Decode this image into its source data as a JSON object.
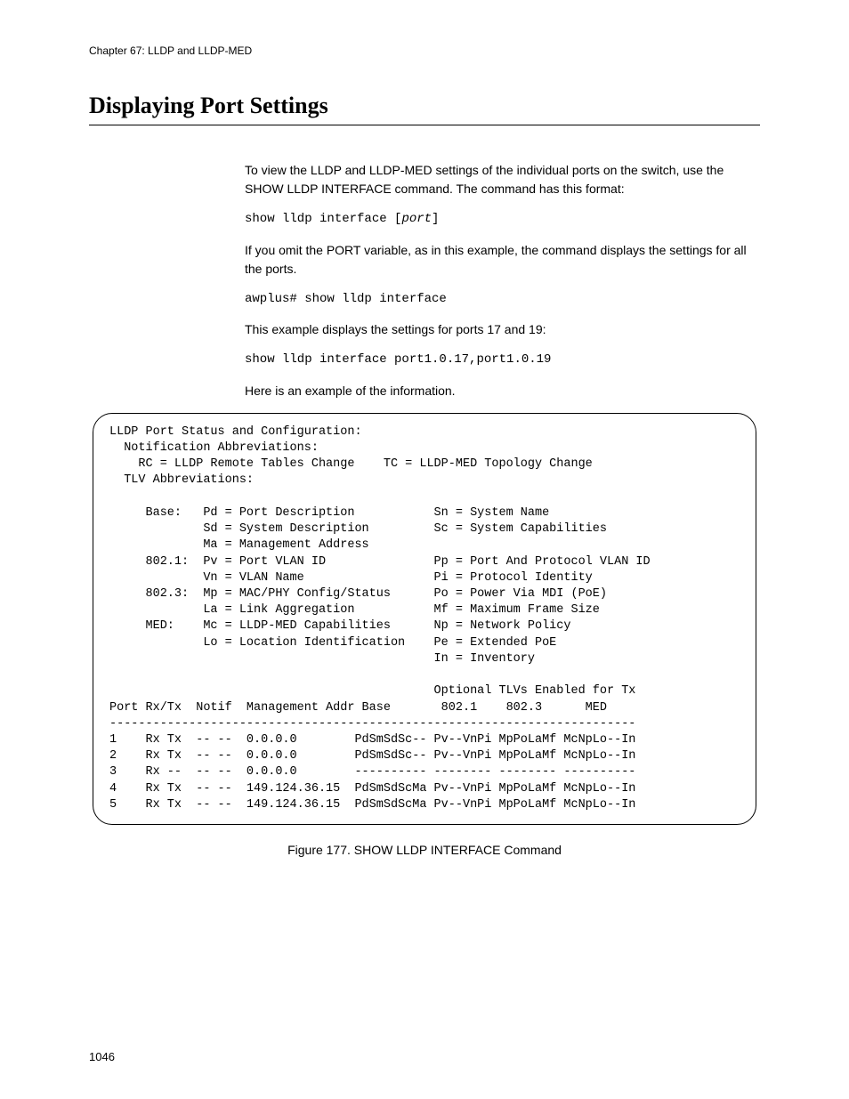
{
  "chapter_header": "Chapter 67: LLDP and LLDP-MED",
  "section_title": "Displaying Port Settings",
  "para1": "To view the LLDP and LLDP-MED settings of the individual ports on the switch, use the SHOW LLDP INTERFACE command. The command has this format:",
  "cmd1_prefix": "show lldp interface [",
  "cmd1_var": "port",
  "cmd1_suffix": "]",
  "para2": "If you omit the PORT variable, as in this example, the command displays the settings for all the ports.",
  "cmd2": "awplus# show lldp interface",
  "para3": "This example displays the settings for ports 17 and 19:",
  "cmd3": "show lldp interface port1.0.17,port1.0.19",
  "para4": "Here is an example of the information.",
  "terminal": "LLDP Port Status and Configuration:\n  Notification Abbreviations:\n    RC = LLDP Remote Tables Change    TC = LLDP-MED Topology Change\n  TLV Abbreviations:\n\n     Base:   Pd = Port Description           Sn = System Name\n             Sd = System Description         Sc = System Capabilities\n             Ma = Management Address\n     802.1:  Pv = Port VLAN ID               Pp = Port And Protocol VLAN ID\n             Vn = VLAN Name                  Pi = Protocol Identity\n     802.3:  Mp = MAC/PHY Config/Status      Po = Power Via MDI (PoE)\n             La = Link Aggregation           Mf = Maximum Frame Size\n     MED:    Mc = LLDP-MED Capabilities      Np = Network Policy\n             Lo = Location Identification    Pe = Extended PoE\n                                             In = Inventory\n\n                                             Optional TLVs Enabled for Tx\nPort Rx/Tx  Notif  Management Addr Base       802.1    802.3      MED\n-------------------------------------------------------------------------\n1    Rx Tx  -- --  0.0.0.0        PdSmSdSc-- Pv--VnPi MpPoLaMf McNpLo--In\n2    Rx Tx  -- --  0.0.0.0        PdSmSdSc-- Pv--VnPi MpPoLaMf McNpLo--In\n3    Rx --  -- --  0.0.0.0        ---------- -------- -------- ----------\n4    Rx Tx  -- --  149.124.36.15  PdSmSdScMa Pv--VnPi MpPoLaMf McNpLo--In\n5    Rx Tx  -- --  149.124.36.15  PdSmSdScMa Pv--VnPi MpPoLaMf McNpLo--In",
  "figure_caption": "Figure 177. SHOW LLDP INTERFACE Command",
  "page_number": "1046"
}
